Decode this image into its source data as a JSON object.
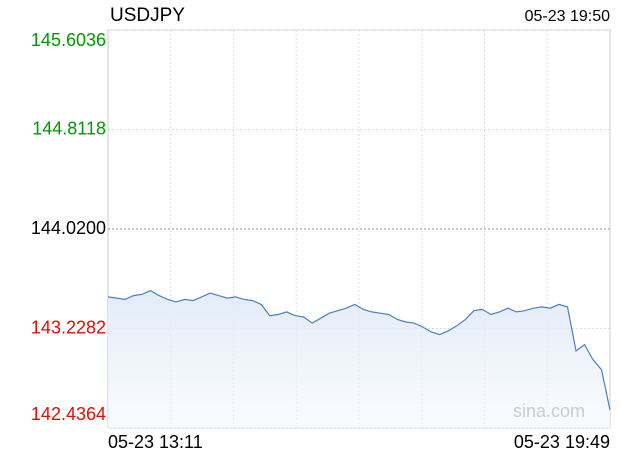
{
  "chart_data": {
    "type": "line",
    "title": "USDJPY",
    "timestamp": "05-23 19:50",
    "watermark": "sina.com",
    "categories": [
      "05-23 13:11",
      null,
      null,
      null,
      null,
      null,
      null,
      null,
      null,
      null,
      null,
      null,
      null,
      null,
      null,
      null,
      null,
      null,
      null,
      null,
      null,
      null,
      null,
      null,
      null,
      null,
      null,
      null,
      null,
      null,
      null,
      null,
      null,
      null,
      null,
      null,
      null,
      null,
      null,
      null,
      null,
      null,
      null,
      null,
      null,
      null,
      null,
      null,
      null,
      null,
      null,
      null,
      null,
      null,
      null,
      null,
      null,
      null,
      null,
      "05-23 19:49"
    ],
    "series": [
      {
        "color": "#4f7fbf",
        "values": [
          143.48,
          143.47,
          143.46,
          143.49,
          143.5,
          143.53,
          143.49,
          143.46,
          143.44,
          143.46,
          143.45,
          143.48,
          143.51,
          143.49,
          143.47,
          143.48,
          143.46,
          143.45,
          143.42,
          143.33,
          143.34,
          143.36,
          143.33,
          143.32,
          143.27,
          143.31,
          143.35,
          143.37,
          143.39,
          143.42,
          143.38,
          143.36,
          143.35,
          143.34,
          143.3,
          143.28,
          143.27,
          143.24,
          143.2,
          143.18,
          143.21,
          143.25,
          143.3,
          143.37,
          143.38,
          143.34,
          143.36,
          143.39,
          143.36,
          143.37,
          143.39,
          143.4,
          143.39,
          143.42,
          143.4,
          143.05,
          143.1,
          142.98,
          142.9,
          142.58
        ]
      }
    ],
    "ylim": [
      142.4364,
      145.6036
    ],
    "yticks": [
      142.4364,
      143.2282,
      {
        "value": 144.02,
        "label": "144.0200"
      },
      144.8118,
      145.6036
    ],
    "ytick_colors": [
      "#dd1100",
      "#dd1100",
      "#000000",
      "#009900",
      "#009900"
    ],
    "grid": true
  }
}
